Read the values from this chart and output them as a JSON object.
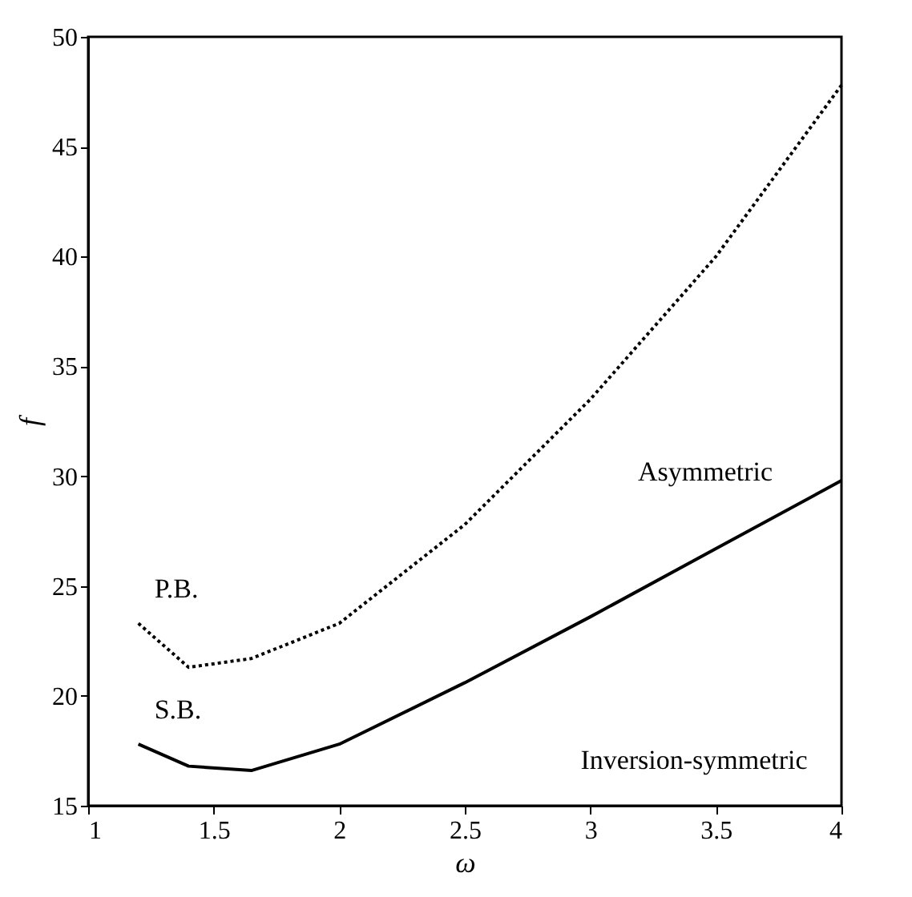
{
  "chart_data": {
    "type": "line",
    "xlabel": "ω",
    "ylabel": "f",
    "xlim": [
      1,
      4
    ],
    "ylim": [
      15,
      50
    ],
    "xticks": [
      1,
      1.5,
      2,
      2.5,
      3,
      3.5,
      4
    ],
    "yticks": [
      15,
      20,
      25,
      30,
      35,
      40,
      45,
      50
    ],
    "grid": false,
    "marker": "none",
    "x": [
      1.2,
      1.4,
      1.65,
      2.0,
      2.5,
      3.0,
      3.5,
      4.0
    ],
    "series": [
      {
        "name": "P.B.",
        "color": "#000000",
        "line_style": "dotted",
        "values": [
          23.3,
          21.3,
          21.7,
          23.3,
          27.8,
          33.5,
          40.0,
          47.8
        ]
      },
      {
        "name": "S.B.",
        "color": "#000000",
        "line_style": "solid",
        "values": [
          17.8,
          16.8,
          16.6,
          17.8,
          20.6,
          23.6,
          26.7,
          29.8
        ]
      }
    ],
    "annotations": [
      "Asymmetric",
      "Inversion-symmetric"
    ]
  }
}
